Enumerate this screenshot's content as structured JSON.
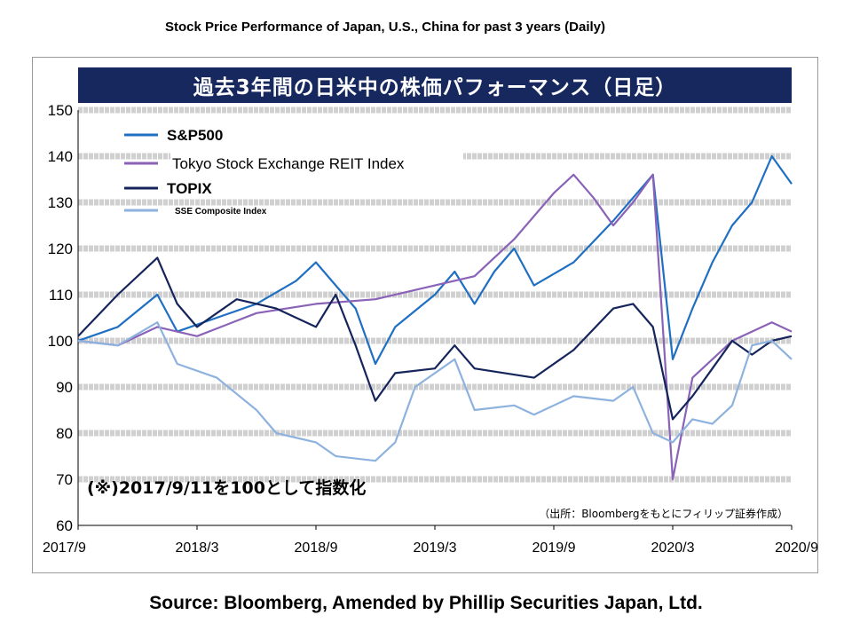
{
  "page_title": "Stock Price Performance of Japan, U.S., China for past 3 years (Daily)",
  "footer": "Source: Bloomberg, Amended by Phillip Securities Japan, Ltd.",
  "chart_data": {
    "type": "line",
    "title": "過去3年間の日米中の株価パフォーマンス（日足）",
    "xlabel": "",
    "ylabel": "",
    "ylim": [
      60,
      150
    ],
    "yticks": [
      60,
      70,
      80,
      90,
      100,
      110,
      120,
      130,
      140,
      150
    ],
    "xlim": [
      "2017-09",
      "2020-09"
    ],
    "xticks": [
      "2017/9",
      "2018/3",
      "2018/9",
      "2019/3",
      "2019/9",
      "2020/3",
      "2020/9"
    ],
    "grid": "horizontal dashed bands",
    "legend_position": "top-left",
    "annotations": {
      "base_note": "(※)2017/9/11を100として指数化",
      "source_note": "（出所：Bloombergをもとにフィリップ証券作成）"
    },
    "series": [
      {
        "name": "S&P500",
        "color": "#1f6fc2",
        "points": [
          [
            "2017-09",
            100
          ],
          [
            "2017-11",
            103
          ],
          [
            "2018-01",
            110
          ],
          [
            "2018-02",
            102
          ],
          [
            "2018-04",
            105
          ],
          [
            "2018-06",
            108
          ],
          [
            "2018-08",
            113
          ],
          [
            "2018-09",
            117
          ],
          [
            "2018-10",
            112
          ],
          [
            "2018-11",
            107
          ],
          [
            "2018-12",
            95
          ],
          [
            "2019-01",
            103
          ],
          [
            "2019-03",
            110
          ],
          [
            "2019-04",
            115
          ],
          [
            "2019-05",
            108
          ],
          [
            "2019-06",
            115
          ],
          [
            "2019-07",
            120
          ],
          [
            "2019-08",
            112
          ],
          [
            "2019-10",
            117
          ],
          [
            "2019-12",
            126
          ],
          [
            "2020-02",
            136
          ],
          [
            "2020-03",
            96
          ],
          [
            "2020-04",
            107
          ],
          [
            "2020-05",
            117
          ],
          [
            "2020-06",
            125
          ],
          [
            "2020-07",
            130
          ],
          [
            "2020-08",
            140
          ],
          [
            "2020-09",
            134
          ]
        ]
      },
      {
        "name": "Tokyo Stock Exchange REIT Index",
        "color": "#8a62b8",
        "points": [
          [
            "2017-09",
            100
          ],
          [
            "2017-11",
            99
          ],
          [
            "2018-01",
            103
          ],
          [
            "2018-03",
            101
          ],
          [
            "2018-06",
            106
          ],
          [
            "2018-09",
            108
          ],
          [
            "2018-12",
            109
          ],
          [
            "2019-03",
            112
          ],
          [
            "2019-05",
            114
          ],
          [
            "2019-07",
            122
          ],
          [
            "2019-09",
            132
          ],
          [
            "2019-10",
            136
          ],
          [
            "2019-11",
            131
          ],
          [
            "2019-12",
            125
          ],
          [
            "2020-01",
            130
          ],
          [
            "2020-02",
            136
          ],
          [
            "2020-03",
            70
          ],
          [
            "2020-04",
            92
          ],
          [
            "2020-05",
            96
          ],
          [
            "2020-06",
            100
          ],
          [
            "2020-07",
            102
          ],
          [
            "2020-08",
            104
          ],
          [
            "2020-09",
            102
          ]
        ]
      },
      {
        "name": "TOPIX",
        "color": "#15255c",
        "points": [
          [
            "2017-09",
            101
          ],
          [
            "2017-11",
            110
          ],
          [
            "2018-01",
            118
          ],
          [
            "2018-02",
            108
          ],
          [
            "2018-03",
            103
          ],
          [
            "2018-05",
            109
          ],
          [
            "2018-07",
            107
          ],
          [
            "2018-09",
            103
          ],
          [
            "2018-10",
            110
          ],
          [
            "2018-11",
            99
          ],
          [
            "2018-12",
            87
          ],
          [
            "2019-01",
            93
          ],
          [
            "2019-03",
            94
          ],
          [
            "2019-04",
            99
          ],
          [
            "2019-05",
            94
          ],
          [
            "2019-08",
            92
          ],
          [
            "2019-10",
            98
          ],
          [
            "2019-12",
            107
          ],
          [
            "2020-01",
            108
          ],
          [
            "2020-02",
            103
          ],
          [
            "2020-03",
            83
          ],
          [
            "2020-04",
            88
          ],
          [
            "2020-05",
            94
          ],
          [
            "2020-06",
            100
          ],
          [
            "2020-07",
            97
          ],
          [
            "2020-08",
            100
          ],
          [
            "2020-09",
            101
          ]
        ]
      },
      {
        "name": "SSE Composite Index",
        "color": "#8eb2de",
        "points": [
          [
            "2017-09",
            100
          ],
          [
            "2017-11",
            99
          ],
          [
            "2018-01",
            104
          ],
          [
            "2018-02",
            95
          ],
          [
            "2018-04",
            92
          ],
          [
            "2018-06",
            85
          ],
          [
            "2018-07",
            80
          ],
          [
            "2018-09",
            78
          ],
          [
            "2018-10",
            75
          ],
          [
            "2018-12",
            74
          ],
          [
            "2019-01",
            78
          ],
          [
            "2019-02",
            90
          ],
          [
            "2019-04",
            96
          ],
          [
            "2019-05",
            85
          ],
          [
            "2019-07",
            86
          ],
          [
            "2019-08",
            84
          ],
          [
            "2019-10",
            88
          ],
          [
            "2019-12",
            87
          ],
          [
            "2020-01",
            90
          ],
          [
            "2020-02",
            80
          ],
          [
            "2020-03",
            78
          ],
          [
            "2020-04",
            83
          ],
          [
            "2020-05",
            82
          ],
          [
            "2020-06",
            86
          ],
          [
            "2020-07",
            99
          ],
          [
            "2020-08",
            100
          ],
          [
            "2020-09",
            96
          ]
        ]
      }
    ]
  }
}
